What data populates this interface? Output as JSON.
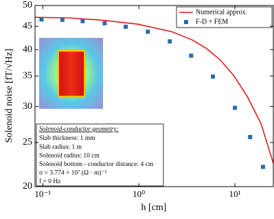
{
  "chart_data": {
    "type": "line",
    "xlabel": "h [cm]",
    "ylabel": "Solenoid noise [fT/√Hz]",
    "xscale": "log",
    "yscale": "log",
    "xlim": [
      0.083,
      25.1
    ],
    "ylim": [
      20,
      50
    ],
    "xticks": [
      {
        "value": 0.1,
        "label": "10⁻¹"
      },
      {
        "value": 1,
        "label": "10⁰"
      },
      {
        "value": 10,
        "label": "10¹"
      }
    ],
    "yticks": [
      20,
      25,
      30,
      35,
      40,
      45,
      50
    ],
    "legend": "upper right",
    "series": [
      {
        "name": "Numerical approx.",
        "color": "#e31a1c",
        "mode": "line",
        "x": [
          0.083,
          0.187,
          0.425,
          0.97,
          2.2,
          3.6,
          5.0,
          7.0,
          9.7,
          13.4,
          18.7,
          25.1
        ],
        "values": [
          47.1,
          46.96,
          46.4,
          45.5,
          43.8,
          42.0,
          40.3,
          38.0,
          35.1,
          31.6,
          27.5,
          22.5
        ]
      },
      {
        "name": "F-D + FEM",
        "color": "#2b6ca3",
        "mode": "markers",
        "x": [
          0.097,
          0.16,
          0.26,
          0.44,
          0.73,
          1.24,
          2.1,
          3.5,
          5.9,
          10,
          14.4,
          19.6
        ],
        "values": [
          46.6,
          46.5,
          46.2,
          45.7,
          44.9,
          43.8,
          41.7,
          38.8,
          34.9,
          29.8,
          25.7,
          22.1
        ]
      }
    ],
    "annotation": {
      "heading": "Solenoid-conductor geometry:",
      "lines": [
        "Slab thickness: 1 mm",
        "Slab radius: 1 m",
        "Solenoid radius: 10 cm",
        "Solenoid bottom - conductor distance: 4 cm",
        "σ = 3.774 × 10⁷ (Ω · m)⁻¹",
        "f = 0 Hz"
      ]
    }
  }
}
